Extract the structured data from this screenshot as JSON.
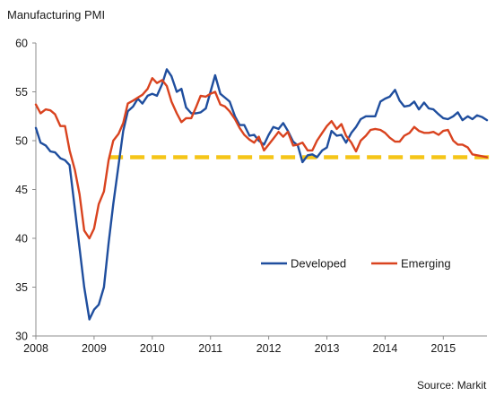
{
  "chart_data": {
    "type": "line",
    "title": "Manufacturing PMI",
    "source": "Source: Markit",
    "xlabel": "",
    "ylabel": "",
    "xlim": [
      2008.0,
      2015.75
    ],
    "ylim": [
      30,
      60
    ],
    "x_ticks": [
      "2008",
      "2009",
      "2010",
      "2011",
      "2012",
      "2013",
      "2014",
      "2015"
    ],
    "y_ticks": [
      "30",
      "35",
      "40",
      "45",
      "50",
      "55",
      "60"
    ],
    "grid": false,
    "legend_position": "bottom-right",
    "reference_line": {
      "value": 48.3,
      "from": 2009.25,
      "to": 2015.8,
      "color": "#f5c518",
      "style": "dashed"
    },
    "series": [
      {
        "name": "Developed",
        "color": "#1f4e9e",
        "points": [
          [
            2008.0,
            51.3
          ],
          [
            2008.08,
            49.8
          ],
          [
            2008.17,
            49.5
          ],
          [
            2008.25,
            48.9
          ],
          [
            2008.33,
            48.8
          ],
          [
            2008.42,
            48.2
          ],
          [
            2008.5,
            48.0
          ],
          [
            2008.58,
            47.5
          ],
          [
            2008.67,
            43.0
          ],
          [
            2008.75,
            39.0
          ],
          [
            2008.83,
            35.0
          ],
          [
            2008.92,
            31.7
          ],
          [
            2009.0,
            32.7
          ],
          [
            2009.08,
            33.2
          ],
          [
            2009.17,
            35.0
          ],
          [
            2009.25,
            39.5
          ],
          [
            2009.33,
            43.5
          ],
          [
            2009.42,
            47.5
          ],
          [
            2009.5,
            51.0
          ],
          [
            2009.58,
            53.0
          ],
          [
            2009.67,
            53.5
          ],
          [
            2009.75,
            54.3
          ],
          [
            2009.83,
            53.8
          ],
          [
            2009.92,
            54.6
          ],
          [
            2010.0,
            54.8
          ],
          [
            2010.08,
            54.6
          ],
          [
            2010.17,
            55.8
          ],
          [
            2010.25,
            57.3
          ],
          [
            2010.33,
            56.6
          ],
          [
            2010.42,
            55.0
          ],
          [
            2010.5,
            55.3
          ],
          [
            2010.58,
            53.4
          ],
          [
            2010.67,
            52.8
          ],
          [
            2010.75,
            52.8
          ],
          [
            2010.83,
            52.9
          ],
          [
            2010.92,
            53.3
          ],
          [
            2011.0,
            55.0
          ],
          [
            2011.08,
            56.7
          ],
          [
            2011.17,
            54.8
          ],
          [
            2011.25,
            54.4
          ],
          [
            2011.33,
            54.0
          ],
          [
            2011.42,
            52.5
          ],
          [
            2011.5,
            51.6
          ],
          [
            2011.58,
            51.6
          ],
          [
            2011.67,
            50.5
          ],
          [
            2011.75,
            50.6
          ],
          [
            2011.83,
            50.0
          ],
          [
            2011.92,
            49.6
          ],
          [
            2012.0,
            50.6
          ],
          [
            2012.08,
            51.4
          ],
          [
            2012.17,
            51.2
          ],
          [
            2012.25,
            51.8
          ],
          [
            2012.33,
            51.0
          ],
          [
            2012.42,
            49.9
          ],
          [
            2012.5,
            49.5
          ],
          [
            2012.58,
            47.8
          ],
          [
            2012.67,
            48.5
          ],
          [
            2012.75,
            48.6
          ],
          [
            2012.83,
            48.3
          ],
          [
            2012.92,
            49.0
          ],
          [
            2013.0,
            49.3
          ],
          [
            2013.08,
            51.0
          ],
          [
            2013.17,
            50.5
          ],
          [
            2013.25,
            50.6
          ],
          [
            2013.33,
            49.8
          ],
          [
            2013.42,
            50.8
          ],
          [
            2013.5,
            51.4
          ],
          [
            2013.58,
            52.2
          ],
          [
            2013.67,
            52.5
          ],
          [
            2013.75,
            52.5
          ],
          [
            2013.83,
            52.5
          ],
          [
            2013.92,
            54.0
          ],
          [
            2014.0,
            54.3
          ],
          [
            2014.08,
            54.5
          ],
          [
            2014.17,
            55.2
          ],
          [
            2014.25,
            54.1
          ],
          [
            2014.33,
            53.5
          ],
          [
            2014.42,
            53.6
          ],
          [
            2014.5,
            54.0
          ],
          [
            2014.58,
            53.2
          ],
          [
            2014.67,
            53.9
          ],
          [
            2014.75,
            53.3
          ],
          [
            2014.83,
            53.2
          ],
          [
            2014.92,
            52.7
          ],
          [
            2015.0,
            52.3
          ],
          [
            2015.08,
            52.2
          ],
          [
            2015.17,
            52.5
          ],
          [
            2015.25,
            52.9
          ],
          [
            2015.33,
            52.1
          ],
          [
            2015.42,
            52.5
          ],
          [
            2015.5,
            52.2
          ],
          [
            2015.58,
            52.6
          ],
          [
            2015.67,
            52.4
          ],
          [
            2015.75,
            52.1
          ]
        ]
      },
      {
        "name": "Emerging",
        "color": "#d9431f",
        "points": [
          [
            2008.0,
            53.7
          ],
          [
            2008.08,
            52.8
          ],
          [
            2008.17,
            53.2
          ],
          [
            2008.25,
            53.1
          ],
          [
            2008.33,
            52.7
          ],
          [
            2008.42,
            51.5
          ],
          [
            2008.5,
            51.5
          ],
          [
            2008.58,
            49.0
          ],
          [
            2008.67,
            47.0
          ],
          [
            2008.75,
            44.5
          ],
          [
            2008.83,
            40.8
          ],
          [
            2008.92,
            40.0
          ],
          [
            2009.0,
            41.0
          ],
          [
            2009.08,
            43.5
          ],
          [
            2009.17,
            44.8
          ],
          [
            2009.25,
            48.0
          ],
          [
            2009.33,
            50.0
          ],
          [
            2009.42,
            50.7
          ],
          [
            2009.5,
            51.8
          ],
          [
            2009.58,
            53.8
          ],
          [
            2009.67,
            54.1
          ],
          [
            2009.75,
            54.4
          ],
          [
            2009.83,
            54.7
          ],
          [
            2009.92,
            55.3
          ],
          [
            2010.0,
            56.4
          ],
          [
            2010.08,
            55.9
          ],
          [
            2010.17,
            56.2
          ],
          [
            2010.25,
            55.6
          ],
          [
            2010.33,
            54.0
          ],
          [
            2010.42,
            52.8
          ],
          [
            2010.5,
            51.9
          ],
          [
            2010.58,
            52.3
          ],
          [
            2010.67,
            52.3
          ],
          [
            2010.75,
            53.4
          ],
          [
            2010.83,
            54.6
          ],
          [
            2010.92,
            54.5
          ],
          [
            2011.0,
            54.8
          ],
          [
            2011.08,
            55.0
          ],
          [
            2011.17,
            53.7
          ],
          [
            2011.25,
            53.5
          ],
          [
            2011.33,
            53.0
          ],
          [
            2011.42,
            52.2
          ],
          [
            2011.5,
            51.3
          ],
          [
            2011.58,
            50.6
          ],
          [
            2011.67,
            50.1
          ],
          [
            2011.75,
            49.8
          ],
          [
            2011.83,
            50.4
          ],
          [
            2011.92,
            49.0
          ],
          [
            2012.0,
            49.6
          ],
          [
            2012.08,
            50.2
          ],
          [
            2012.17,
            50.9
          ],
          [
            2012.25,
            50.4
          ],
          [
            2012.33,
            50.9
          ],
          [
            2012.42,
            49.5
          ],
          [
            2012.5,
            49.6
          ],
          [
            2012.58,
            49.8
          ],
          [
            2012.67,
            49.0
          ],
          [
            2012.75,
            49.0
          ],
          [
            2012.83,
            50.0
          ],
          [
            2012.92,
            50.8
          ],
          [
            2013.0,
            51.5
          ],
          [
            2013.08,
            52.0
          ],
          [
            2013.17,
            51.2
          ],
          [
            2013.25,
            51.7
          ],
          [
            2013.33,
            50.5
          ],
          [
            2013.42,
            49.8
          ],
          [
            2013.5,
            48.9
          ],
          [
            2013.58,
            50.0
          ],
          [
            2013.67,
            50.5
          ],
          [
            2013.75,
            51.1
          ],
          [
            2013.83,
            51.2
          ],
          [
            2013.92,
            51.1
          ],
          [
            2014.0,
            50.8
          ],
          [
            2014.08,
            50.3
          ],
          [
            2014.17,
            49.9
          ],
          [
            2014.25,
            49.9
          ],
          [
            2014.33,
            50.5
          ],
          [
            2014.42,
            50.8
          ],
          [
            2014.5,
            51.4
          ],
          [
            2014.58,
            51.0
          ],
          [
            2014.67,
            50.8
          ],
          [
            2014.75,
            50.8
          ],
          [
            2014.83,
            50.9
          ],
          [
            2014.92,
            50.6
          ],
          [
            2015.0,
            51.0
          ],
          [
            2015.08,
            51.1
          ],
          [
            2015.17,
            50.0
          ],
          [
            2015.25,
            49.6
          ],
          [
            2015.33,
            49.6
          ],
          [
            2015.42,
            49.3
          ],
          [
            2015.5,
            48.6
          ],
          [
            2015.58,
            48.5
          ],
          [
            2015.67,
            48.4
          ],
          [
            2015.75,
            48.3
          ]
        ]
      }
    ]
  }
}
